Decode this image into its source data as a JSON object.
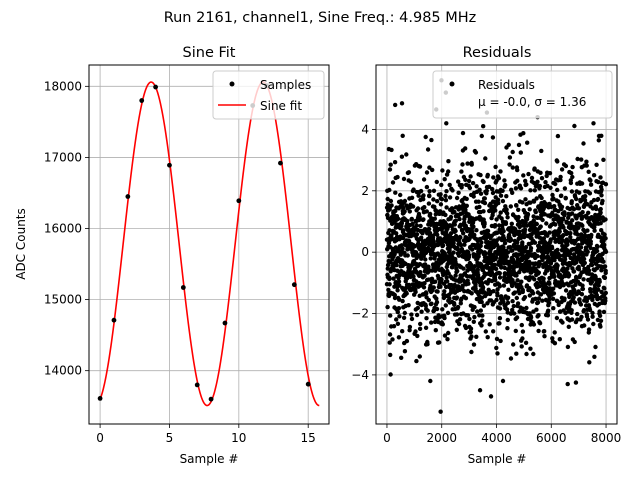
{
  "suptitle": "Run 2161, channel1, Sine Freq.: 4.985 MHz",
  "chart_data": [
    {
      "type": "line",
      "title": "Sine Fit",
      "xlabel": "Sample #",
      "ylabel": "ADC Counts",
      "xlim": [
        -0.8,
        16.5
      ],
      "ylim": [
        13250,
        18300
      ],
      "xticks": [
        0,
        5,
        10,
        15
      ],
      "yticks": [
        14000,
        15000,
        16000,
        17000,
        18000
      ],
      "grid": true,
      "legend": "top-right",
      "series": [
        {
          "name": "Samples",
          "kind": "scatter",
          "color": "#000000",
          "x": [
            0,
            1,
            2,
            3,
            4,
            5,
            6,
            7,
            8,
            9,
            10,
            11,
            12,
            13,
            14,
            15
          ],
          "y": [
            13610,
            14710,
            16450,
            17800,
            17990,
            16890,
            15170,
            13800,
            13600,
            14670,
            16390,
            17730,
            18010,
            16920,
            15210,
            13810
          ]
        },
        {
          "name": "Sine fit",
          "kind": "line",
          "color": "#ff0000",
          "model": {
            "offset": 15785,
            "amplitude": 2275,
            "period": 8.075,
            "phase_sample": 1.66,
            "x_start": 0,
            "x_end": 15.8
          }
        }
      ]
    },
    {
      "type": "scatter",
      "title": "Residuals",
      "xlabel": "Sample #",
      "ylabel": "",
      "xlim": [
        -400,
        8400
      ],
      "ylim": [
        -5.6,
        6.1
      ],
      "xticks": [
        0,
        2000,
        4000,
        6000,
        8000
      ],
      "yticks": [
        -4,
        -2,
        0,
        2,
        4
      ],
      "grid": true,
      "legend": "top-right",
      "series": [
        {
          "name": "Residuals",
          "color": "#000000",
          "x_range": [
            0,
            7999
          ],
          "n_points": 8000,
          "mean": -0.0,
          "sigma": 1.36,
          "outliers_x": [
            1960,
            300,
            550,
            2150,
            3650,
            5500,
            1800,
            6900,
            3400,
            1990,
            3800,
            6600
          ],
          "outliers_y": [
            -5.2,
            4.8,
            4.85,
            5.2,
            4.55,
            4.4,
            4.65,
            -4.25,
            -4.5,
            5.6,
            -4.7,
            -4.3
          ]
        }
      ],
      "legend_lines": [
        "Residuals",
        "μ = -0.0, σ = 1.36"
      ]
    }
  ]
}
